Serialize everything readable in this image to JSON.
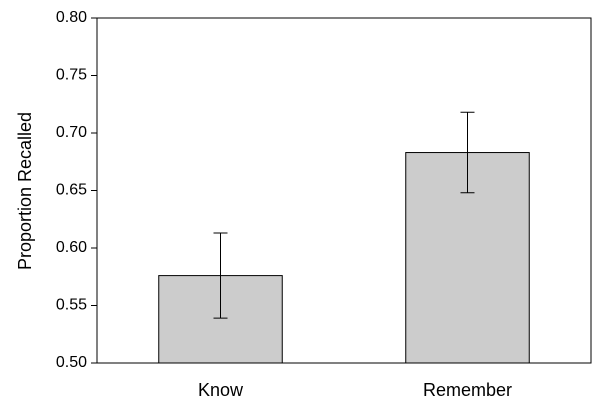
{
  "chart_data": {
    "type": "bar",
    "ylabel": "Proportion Recalled",
    "categories": [
      "Know",
      "Remember"
    ],
    "values": [
      0.576,
      0.683
    ],
    "errors": [
      0.037,
      0.035
    ],
    "color": "#cccccc",
    "ylim": [
      0.5,
      0.8
    ],
    "yticks": [
      {
        "value": 0.5,
        "label": "0.50"
      },
      {
        "value": 0.55,
        "label": "0.55"
      },
      {
        "value": 0.6,
        "label": "0.60"
      },
      {
        "value": 0.65,
        "label": "0.65"
      },
      {
        "value": 0.7,
        "label": "0.70"
      },
      {
        "value": 0.75,
        "label": "0.75"
      },
      {
        "value": 0.8,
        "label": "0.80"
      }
    ],
    "grid": false
  }
}
